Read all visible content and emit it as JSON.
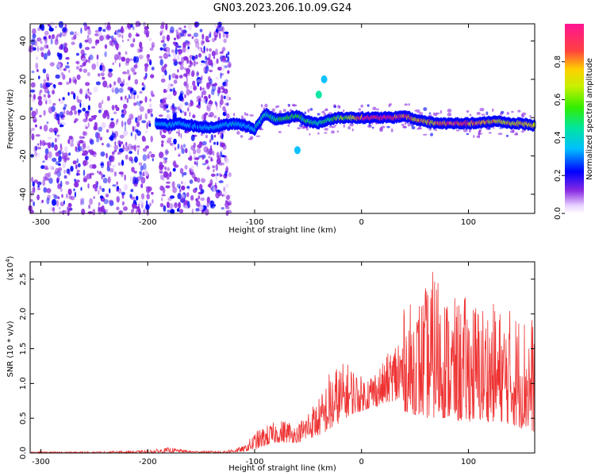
{
  "title": "GN03.2023.206.10.09.G24",
  "chart_data": [
    {
      "type": "heatmap",
      "xlabel": "Height of straight line (km)",
      "ylabel": "Frequency (Hz)",
      "xlim": [
        -310,
        162
      ],
      "ylim": [
        -50,
        49
      ],
      "xticks": [
        -300,
        -200,
        -100,
        0,
        100
      ],
      "xtick_labels": [
        "-300",
        "-200",
        "-100",
        "0",
        "100"
      ],
      "yticks": [
        -40,
        -20,
        0,
        20,
        40
      ],
      "ytick_labels": [
        "-40",
        "-20",
        "0",
        "20",
        "40"
      ],
      "colorbar": {
        "label": "Normalized spectral amplitude",
        "range": [
          0,
          1
        ],
        "ticks": [
          0.0,
          0.2,
          0.4,
          0.6,
          0.8
        ],
        "tick_labels": [
          "0.0",
          "0.2",
          "0.4",
          "0.6",
          "0.8"
        ]
      },
      "ridge": {
        "x": [
          -190,
          -180,
          -170,
          -160,
          -150,
          -140,
          -130,
          -120,
          -110,
          -100,
          -90,
          -80,
          -70,
          -60,
          -50,
          -40,
          -30,
          -20,
          -10,
          0,
          10,
          20,
          30,
          40,
          50,
          60,
          70,
          80,
          90,
          100,
          110,
          120,
          130,
          140,
          150,
          160
        ],
        "y": [
          -3,
          -4,
          -3,
          -4,
          -5,
          -5,
          -4,
          -3,
          -4,
          -6,
          2,
          -1,
          0,
          1,
          -2,
          -3,
          -1,
          0,
          0,
          0,
          0,
          0,
          0,
          1,
          -1,
          -2,
          -3,
          -3,
          -3,
          -3,
          -3,
          -2,
          -2,
          -3,
          -3,
          -4
        ],
        "amplitude": [
          0.3,
          0.35,
          0.3,
          0.25,
          0.25,
          0.3,
          0.3,
          0.35,
          0.3,
          0.35,
          0.4,
          0.45,
          0.5,
          0.5,
          0.45,
          0.4,
          0.5,
          0.55,
          0.65,
          0.9,
          0.95,
          0.95,
          0.9,
          0.85,
          0.8,
          0.75,
          0.8,
          0.85,
          0.8,
          0.85,
          0.8,
          0.75,
          0.7,
          0.7,
          0.75,
          0.7
        ]
      }
    },
    {
      "type": "line",
      "xlabel": "Height of straight line (km)",
      "ylabel": "SNR (10 * v/v)",
      "y_multiplier": "(x10",
      "y_multiplier_exp": "4",
      "y_multiplier_close": ")",
      "xlim": [
        -310,
        162
      ],
      "ylim": [
        0,
        2.75
      ],
      "xticks": [
        -300,
        -200,
        -100,
        0,
        100
      ],
      "xtick_labels": [
        "-300",
        "-200",
        "-100",
        "0",
        "100"
      ],
      "yticks": [
        0,
        0.5,
        1.0,
        1.5,
        2.0,
        2.5
      ],
      "ytick_labels": [
        "0.0",
        "0.5",
        "1.0",
        "1.5",
        "2.0",
        "2.5"
      ],
      "color": "#ee3333",
      "envelope": {
        "x": [
          -310,
          -250,
          -200,
          -180,
          -170,
          -160,
          -130,
          -110,
          -100,
          -90,
          -80,
          -70,
          -60,
          -50,
          -40,
          -35,
          -30,
          -20,
          -10,
          0,
          10,
          20,
          30,
          40,
          50,
          60,
          70,
          80,
          90,
          100,
          110,
          120,
          130,
          140,
          150,
          162
        ],
        "base": [
          0.0,
          0.0,
          0.0,
          0.01,
          0.01,
          0.01,
          0.0,
          0.02,
          0.05,
          0.1,
          0.15,
          0.15,
          0.15,
          0.2,
          0.25,
          0.3,
          0.3,
          0.45,
          0.55,
          0.6,
          0.65,
          0.7,
          0.75,
          0.6,
          0.55,
          0.5,
          0.5,
          0.5,
          0.45,
          0.45,
          0.45,
          0.45,
          0.45,
          0.4,
          0.35,
          0.3
        ],
        "peak": [
          0.02,
          0.02,
          0.04,
          0.08,
          0.06,
          0.03,
          0.03,
          0.1,
          0.3,
          0.4,
          0.45,
          0.5,
          0.4,
          0.65,
          0.8,
          0.95,
          1.2,
          1.3,
          1.3,
          1.1,
          1.2,
          1.3,
          1.6,
          2.1,
          2.2,
          2.4,
          2.75,
          2.3,
          2.2,
          2.3,
          2.2,
          2.2,
          2.1,
          2.1,
          2.05,
          2.0
        ]
      }
    }
  ]
}
